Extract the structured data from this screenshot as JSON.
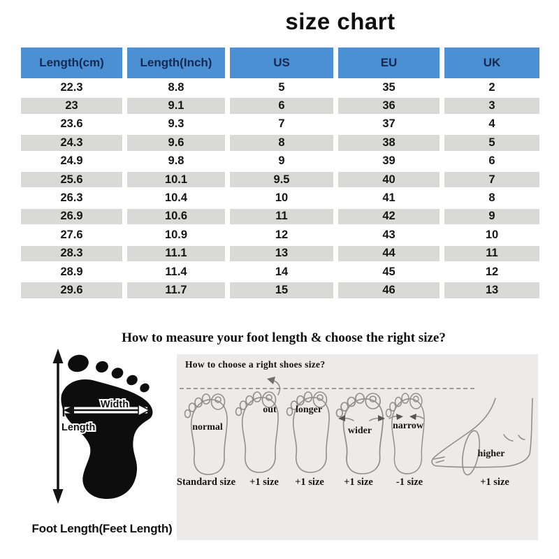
{
  "title": "size chart",
  "colors": {
    "header_bg": "#4b90d3",
    "header_text": "#152a52",
    "stripe": "#d9d9d8",
    "panel_bg": "#ecebe9",
    "sketch": "#8f8f8f"
  },
  "table": {
    "headers": [
      "Length(cm)",
      "Length(Inch)",
      "US",
      "EU",
      "UK"
    ],
    "rows": [
      [
        "22.3",
        "8.8",
        "5",
        "35",
        "2"
      ],
      [
        "23",
        "9.1",
        "6",
        "36",
        "3"
      ],
      [
        "23.6",
        "9.3",
        "7",
        "37",
        "4"
      ],
      [
        "24.3",
        "9.6",
        "8",
        "38",
        "5"
      ],
      [
        "24.9",
        "9.8",
        "9",
        "39",
        "6"
      ],
      [
        "25.6",
        "10.1",
        "9.5",
        "40",
        "7"
      ],
      [
        "26.3",
        "10.4",
        "10",
        "41",
        "8"
      ],
      [
        "26.9",
        "10.6",
        "11",
        "42",
        "9"
      ],
      [
        "27.6",
        "10.9",
        "12",
        "43",
        "10"
      ],
      [
        "28.3",
        "11.1",
        "13",
        "44",
        "11"
      ],
      [
        "28.9",
        "11.4",
        "14",
        "45",
        "12"
      ],
      [
        "29.6",
        "11.7",
        "15",
        "46",
        "13"
      ]
    ]
  },
  "measure": {
    "heading": "How to measure your foot length & choose the right size?",
    "foot_diagram": {
      "width_label": "Width",
      "length_label": "Length",
      "caption": "Foot Length(Feet Length)"
    },
    "panel": {
      "title": "How to choose a right shoes size?",
      "feet": [
        {
          "label": "normal",
          "size": "Standard size"
        },
        {
          "label": "out",
          "size": "+1 size"
        },
        {
          "label": "longer",
          "size": "+1 size"
        },
        {
          "label": "wider",
          "size": "+1 size"
        },
        {
          "label": "narrow",
          "size": "-1 size"
        },
        {
          "label": "higher",
          "size": "+1 size"
        }
      ]
    }
  },
  "chart_data": {
    "type": "table",
    "title": "size chart",
    "columns": [
      "Length(cm)",
      "Length(Inch)",
      "US",
      "EU",
      "UK"
    ],
    "rows": [
      [
        22.3,
        8.8,
        5,
        35,
        2
      ],
      [
        23,
        9.1,
        6,
        36,
        3
      ],
      [
        23.6,
        9.3,
        7,
        37,
        4
      ],
      [
        24.3,
        9.6,
        8,
        38,
        5
      ],
      [
        24.9,
        9.8,
        9,
        39,
        6
      ],
      [
        25.6,
        10.1,
        9.5,
        40,
        7
      ],
      [
        26.3,
        10.4,
        10,
        41,
        8
      ],
      [
        26.9,
        10.6,
        11,
        42,
        9
      ],
      [
        27.6,
        10.9,
        12,
        43,
        10
      ],
      [
        28.3,
        11.1,
        13,
        44,
        11
      ],
      [
        28.9,
        11.4,
        14,
        45,
        12
      ],
      [
        29.6,
        11.7,
        15,
        46,
        13
      ]
    ]
  }
}
